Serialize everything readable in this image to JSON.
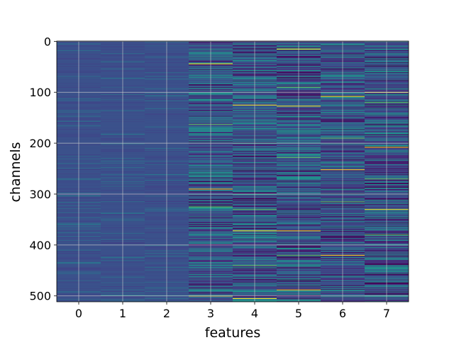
{
  "chart_data": {
    "type": "heatmap",
    "xlabel": "features",
    "ylabel": "channels",
    "x_ticks": [
      "0",
      "1",
      "2",
      "3",
      "4",
      "5",
      "6",
      "7"
    ],
    "y_ticks": [
      "0",
      "100",
      "200",
      "300",
      "400",
      "500"
    ],
    "y_tick_values": [
      0,
      100,
      200,
      300,
      400,
      500
    ],
    "rows": 512,
    "columns": 8,
    "xlim": [
      -0.5,
      7.5
    ],
    "ylim": [
      511.5,
      -0.5
    ],
    "grid": true,
    "colormap": "viridis",
    "highlights": [
      {
        "feature": 5,
        "channels": [
          15,
          90,
          127,
          228,
          372,
          420,
          488
        ]
      },
      {
        "feature": 6,
        "channels": [
          108,
          190,
          252,
          315,
          420
        ]
      },
      {
        "feature": 7,
        "channels": [
          100,
          120,
          208,
          270,
          330,
          380
        ]
      },
      {
        "feature": 4,
        "channels": [
          125,
          330,
          372,
          440,
          505
        ]
      },
      {
        "feature": 3,
        "channels": [
          44,
          163,
          290,
          325,
          500
        ]
      }
    ]
  },
  "colors": {
    "base": "#3b518b",
    "dark": "#472c7a",
    "mid": "#2c728e",
    "teal": "#21918c",
    "green": "#5ec962",
    "yellow": "#fde725",
    "grid": "#cccccc"
  }
}
